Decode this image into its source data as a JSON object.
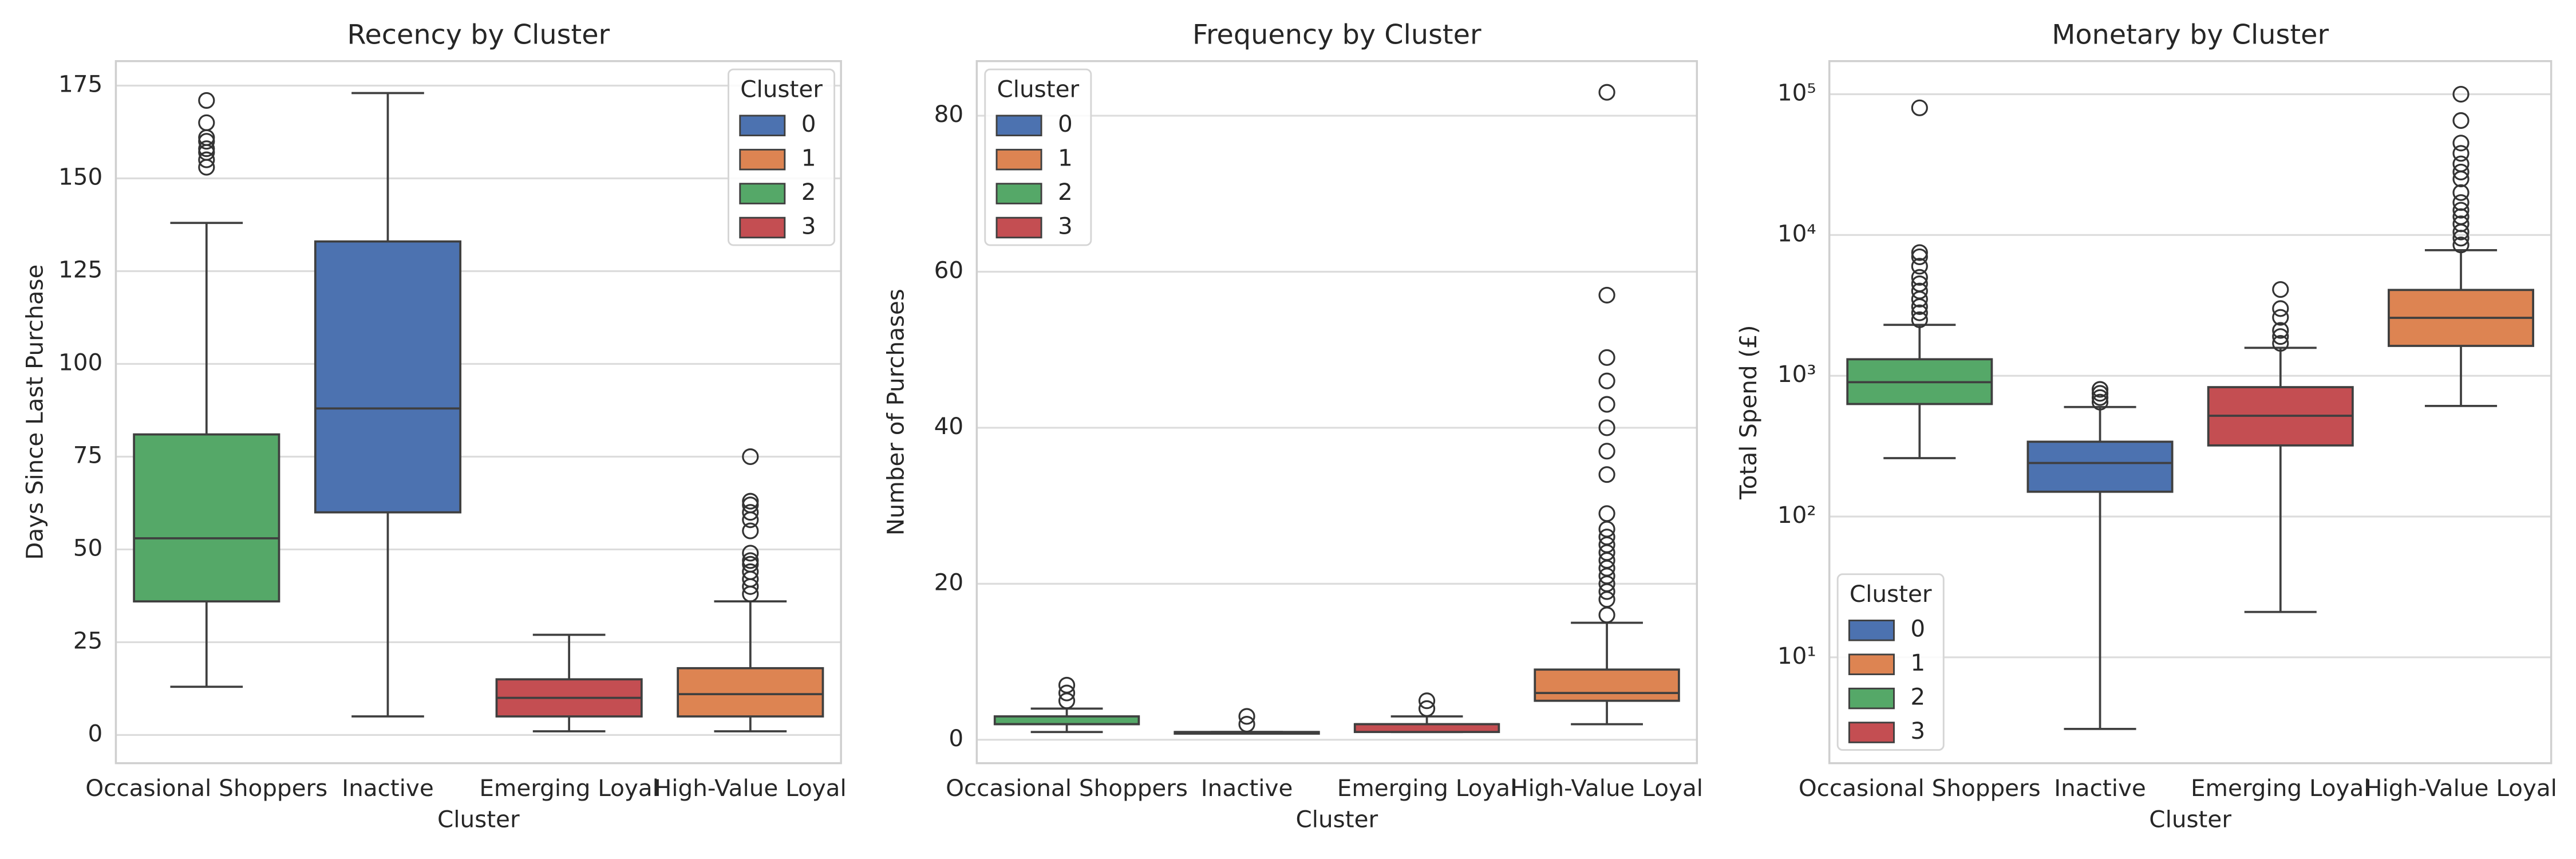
{
  "chart_data": [
    {
      "type": "box",
      "title": "Recency by Cluster",
      "xlabel": "Cluster",
      "ylabel": "Days Since Last Purchase",
      "categories": [
        "Occasional Shoppers",
        "Inactive",
        "Emerging Loyal",
        "High-Value Loyal"
      ],
      "colors": [
        "#55a868",
        "#4c72b0",
        "#c44e52",
        "#dd8452"
      ],
      "boxes": [
        {
          "whislo": 13,
          "q1": 36,
          "med": 53,
          "q3": 81,
          "whishi": 138,
          "fliers": [
            153,
            155,
            157,
            158,
            160,
            161,
            165,
            171
          ]
        },
        {
          "whislo": 5,
          "q1": 60,
          "med": 88,
          "q3": 133,
          "whishi": 173,
          "fliers": []
        },
        {
          "whislo": 1,
          "q1": 5,
          "med": 10,
          "q3": 15,
          "whishi": 27,
          "fliers": []
        },
        {
          "whislo": 1,
          "q1": 5,
          "med": 11,
          "q3": 18,
          "whishi": 36,
          "fliers": [
            38,
            40,
            42,
            44,
            46,
            47,
            49,
            55,
            58,
            60,
            62,
            63,
            75
          ]
        }
      ],
      "ylim": [
        -7.6,
        181.6
      ],
      "yticks": [
        0,
        25,
        50,
        75,
        100,
        125,
        150,
        175
      ],
      "yscale": "linear",
      "grid": true,
      "legend": {
        "title": "Cluster",
        "labels": [
          "0",
          "1",
          "2",
          "3"
        ],
        "colors": [
          "#4c72b0",
          "#dd8452",
          "#55a868",
          "#c44e52"
        ],
        "loc": "upper right"
      }
    },
    {
      "type": "box",
      "title": "Frequency by Cluster",
      "xlabel": "Cluster",
      "ylabel": "Number of Purchases",
      "categories": [
        "Occasional Shoppers",
        "Inactive",
        "Emerging Loyal",
        "High-Value Loyal"
      ],
      "colors": [
        "#55a868",
        "#4c72b0",
        "#c44e52",
        "#dd8452"
      ],
      "boxes": [
        {
          "whislo": 1,
          "q1": 2,
          "med": 2,
          "q3": 3,
          "whishi": 4,
          "fliers": [
            5,
            6,
            7
          ]
        },
        {
          "whislo": 1,
          "q1": 1,
          "med": 1,
          "q3": 1,
          "whishi": 1,
          "fliers": [
            2,
            3
          ]
        },
        {
          "whislo": 1,
          "q1": 1,
          "med": 2,
          "q3": 2,
          "whishi": 3,
          "fliers": [
            4,
            5
          ]
        },
        {
          "whislo": 2,
          "q1": 5,
          "med": 6,
          "q3": 9,
          "whishi": 15,
          "fliers": [
            16,
            18,
            19,
            20,
            21,
            22,
            23,
            24,
            25,
            26,
            27,
            29,
            34,
            37,
            40,
            43,
            46,
            49,
            57,
            83
          ]
        }
      ],
      "ylim": [
        -3,
        87
      ],
      "yticks": [
        0,
        20,
        40,
        60,
        80
      ],
      "yscale": "linear",
      "grid": true,
      "legend": {
        "title": "Cluster",
        "labels": [
          "0",
          "1",
          "2",
          "3"
        ],
        "colors": [
          "#4c72b0",
          "#dd8452",
          "#55a868",
          "#c44e52"
        ],
        "loc": "upper left"
      }
    },
    {
      "type": "box",
      "title": "Monetary by Cluster",
      "xlabel": "Cluster",
      "ylabel": "Total Spend (£)",
      "categories": [
        "Occasional Shoppers",
        "Inactive",
        "Emerging Loyal",
        "High-Value Loyal"
      ],
      "colors": [
        "#55a868",
        "#4c72b0",
        "#c44e52",
        "#dd8452"
      ],
      "boxes": [
        {
          "whislo": 260,
          "q1": 630,
          "med": 900,
          "q3": 1310,
          "whishi": 2300,
          "fliers": [
            2500,
            2800,
            3100,
            3500,
            4000,
            4500,
            5000,
            6000,
            7000,
            7500,
            80000
          ]
        },
        {
          "whislo": 3.1,
          "q1": 150,
          "med": 240,
          "q3": 340,
          "whishi": 600,
          "fliers": [
            650,
            700,
            750,
            800
          ]
        },
        {
          "whislo": 21,
          "q1": 320,
          "med": 520,
          "q3": 830,
          "whishi": 1580,
          "fliers": [
            1700,
            1900,
            2100,
            2600,
            3000,
            4100
          ]
        },
        {
          "whislo": 610,
          "q1": 1630,
          "med": 2580,
          "q3": 4070,
          "whishi": 7800,
          "fliers": [
            8500,
            9500,
            10500,
            12000,
            13500,
            15000,
            17000,
            20000,
            25000,
            28000,
            32000,
            38000,
            45000,
            65000,
            100000
          ]
        }
      ],
      "ylim": [
        1.77,
        171800
      ],
      "yticks": [
        {
          "value": 10,
          "label": "10¹"
        },
        {
          "value": 100,
          "label": "10²"
        },
        {
          "value": 1000,
          "label": "10³"
        },
        {
          "value": 10000,
          "label": "10⁴"
        },
        {
          "value": 100000,
          "label": "10⁵"
        }
      ],
      "yscale": "log",
      "grid": true,
      "legend": {
        "title": "Cluster",
        "labels": [
          "0",
          "1",
          "2",
          "3"
        ],
        "colors": [
          "#4c72b0",
          "#dd8452",
          "#55a868",
          "#c44e52"
        ],
        "loc": "lower left"
      }
    }
  ]
}
